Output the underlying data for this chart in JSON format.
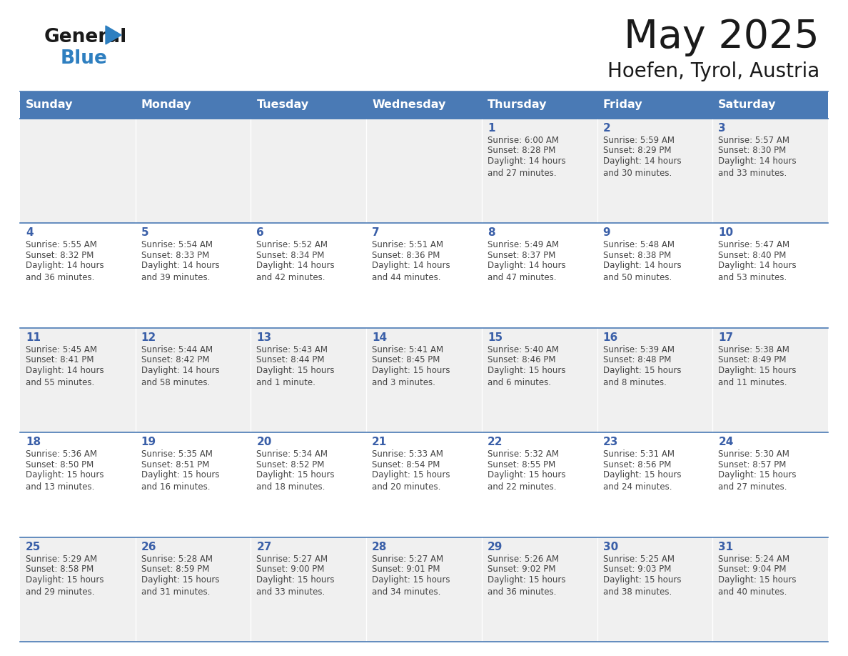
{
  "title": "May 2025",
  "subtitle": "Hoefen, Tyrol, Austria",
  "days_of_week": [
    "Sunday",
    "Monday",
    "Tuesday",
    "Wednesday",
    "Thursday",
    "Friday",
    "Saturday"
  ],
  "header_bg": "#4a7ab5",
  "header_text": "#ffffff",
  "cell_bg_odd": "#f0f0f0",
  "cell_bg_even": "#ffffff",
  "day_number_color": "#3a5fa8",
  "cell_text_color": "#444444",
  "border_color": "#4a7ab5",
  "logo_general_color": "#1a1a1a",
  "logo_blue_color": "#2e7fc0",
  "logo_triangle_color": "#2e7fc0",
  "week_rows": [
    {
      "days": [
        {
          "day": 0,
          "date": "",
          "sunrise": "",
          "sunset": "",
          "daylight": ""
        },
        {
          "day": 1,
          "date": "",
          "sunrise": "",
          "sunset": "",
          "daylight": ""
        },
        {
          "day": 2,
          "date": "",
          "sunrise": "",
          "sunset": "",
          "daylight": ""
        },
        {
          "day": 3,
          "date": "",
          "sunrise": "",
          "sunset": "",
          "daylight": ""
        },
        {
          "day": 4,
          "date": "1",
          "sunrise": "6:00 AM",
          "sunset": "8:28 PM",
          "daylight": "14 hours\nand 27 minutes."
        },
        {
          "day": 5,
          "date": "2",
          "sunrise": "5:59 AM",
          "sunset": "8:29 PM",
          "daylight": "14 hours\nand 30 minutes."
        },
        {
          "day": 6,
          "date": "3",
          "sunrise": "5:57 AM",
          "sunset": "8:30 PM",
          "daylight": "14 hours\nand 33 minutes."
        }
      ]
    },
    {
      "days": [
        {
          "day": 0,
          "date": "4",
          "sunrise": "5:55 AM",
          "sunset": "8:32 PM",
          "daylight": "14 hours\nand 36 minutes."
        },
        {
          "day": 1,
          "date": "5",
          "sunrise": "5:54 AM",
          "sunset": "8:33 PM",
          "daylight": "14 hours\nand 39 minutes."
        },
        {
          "day": 2,
          "date": "6",
          "sunrise": "5:52 AM",
          "sunset": "8:34 PM",
          "daylight": "14 hours\nand 42 minutes."
        },
        {
          "day": 3,
          "date": "7",
          "sunrise": "5:51 AM",
          "sunset": "8:36 PM",
          "daylight": "14 hours\nand 44 minutes."
        },
        {
          "day": 4,
          "date": "8",
          "sunrise": "5:49 AM",
          "sunset": "8:37 PM",
          "daylight": "14 hours\nand 47 minutes."
        },
        {
          "day": 5,
          "date": "9",
          "sunrise": "5:48 AM",
          "sunset": "8:38 PM",
          "daylight": "14 hours\nand 50 minutes."
        },
        {
          "day": 6,
          "date": "10",
          "sunrise": "5:47 AM",
          "sunset": "8:40 PM",
          "daylight": "14 hours\nand 53 minutes."
        }
      ]
    },
    {
      "days": [
        {
          "day": 0,
          "date": "11",
          "sunrise": "5:45 AM",
          "sunset": "8:41 PM",
          "daylight": "14 hours\nand 55 minutes."
        },
        {
          "day": 1,
          "date": "12",
          "sunrise": "5:44 AM",
          "sunset": "8:42 PM",
          "daylight": "14 hours\nand 58 minutes."
        },
        {
          "day": 2,
          "date": "13",
          "sunrise": "5:43 AM",
          "sunset": "8:44 PM",
          "daylight": "15 hours\nand 1 minute."
        },
        {
          "day": 3,
          "date": "14",
          "sunrise": "5:41 AM",
          "sunset": "8:45 PM",
          "daylight": "15 hours\nand 3 minutes."
        },
        {
          "day": 4,
          "date": "15",
          "sunrise": "5:40 AM",
          "sunset": "8:46 PM",
          "daylight": "15 hours\nand 6 minutes."
        },
        {
          "day": 5,
          "date": "16",
          "sunrise": "5:39 AM",
          "sunset": "8:48 PM",
          "daylight": "15 hours\nand 8 minutes."
        },
        {
          "day": 6,
          "date": "17",
          "sunrise": "5:38 AM",
          "sunset": "8:49 PM",
          "daylight": "15 hours\nand 11 minutes."
        }
      ]
    },
    {
      "days": [
        {
          "day": 0,
          "date": "18",
          "sunrise": "5:36 AM",
          "sunset": "8:50 PM",
          "daylight": "15 hours\nand 13 minutes."
        },
        {
          "day": 1,
          "date": "19",
          "sunrise": "5:35 AM",
          "sunset": "8:51 PM",
          "daylight": "15 hours\nand 16 minutes."
        },
        {
          "day": 2,
          "date": "20",
          "sunrise": "5:34 AM",
          "sunset": "8:52 PM",
          "daylight": "15 hours\nand 18 minutes."
        },
        {
          "day": 3,
          "date": "21",
          "sunrise": "5:33 AM",
          "sunset": "8:54 PM",
          "daylight": "15 hours\nand 20 minutes."
        },
        {
          "day": 4,
          "date": "22",
          "sunrise": "5:32 AM",
          "sunset": "8:55 PM",
          "daylight": "15 hours\nand 22 minutes."
        },
        {
          "day": 5,
          "date": "23",
          "sunrise": "5:31 AM",
          "sunset": "8:56 PM",
          "daylight": "15 hours\nand 24 minutes."
        },
        {
          "day": 6,
          "date": "24",
          "sunrise": "5:30 AM",
          "sunset": "8:57 PM",
          "daylight": "15 hours\nand 27 minutes."
        }
      ]
    },
    {
      "days": [
        {
          "day": 0,
          "date": "25",
          "sunrise": "5:29 AM",
          "sunset": "8:58 PM",
          "daylight": "15 hours\nand 29 minutes."
        },
        {
          "day": 1,
          "date": "26",
          "sunrise": "5:28 AM",
          "sunset": "8:59 PM",
          "daylight": "15 hours\nand 31 minutes."
        },
        {
          "day": 2,
          "date": "27",
          "sunrise": "5:27 AM",
          "sunset": "9:00 PM",
          "daylight": "15 hours\nand 33 minutes."
        },
        {
          "day": 3,
          "date": "28",
          "sunrise": "5:27 AM",
          "sunset": "9:01 PM",
          "daylight": "15 hours\nand 34 minutes."
        },
        {
          "day": 4,
          "date": "29",
          "sunrise": "5:26 AM",
          "sunset": "9:02 PM",
          "daylight": "15 hours\nand 36 minutes."
        },
        {
          "day": 5,
          "date": "30",
          "sunrise": "5:25 AM",
          "sunset": "9:03 PM",
          "daylight": "15 hours\nand 38 minutes."
        },
        {
          "day": 6,
          "date": "31",
          "sunrise": "5:24 AM",
          "sunset": "9:04 PM",
          "daylight": "15 hours\nand 40 minutes."
        }
      ]
    }
  ]
}
